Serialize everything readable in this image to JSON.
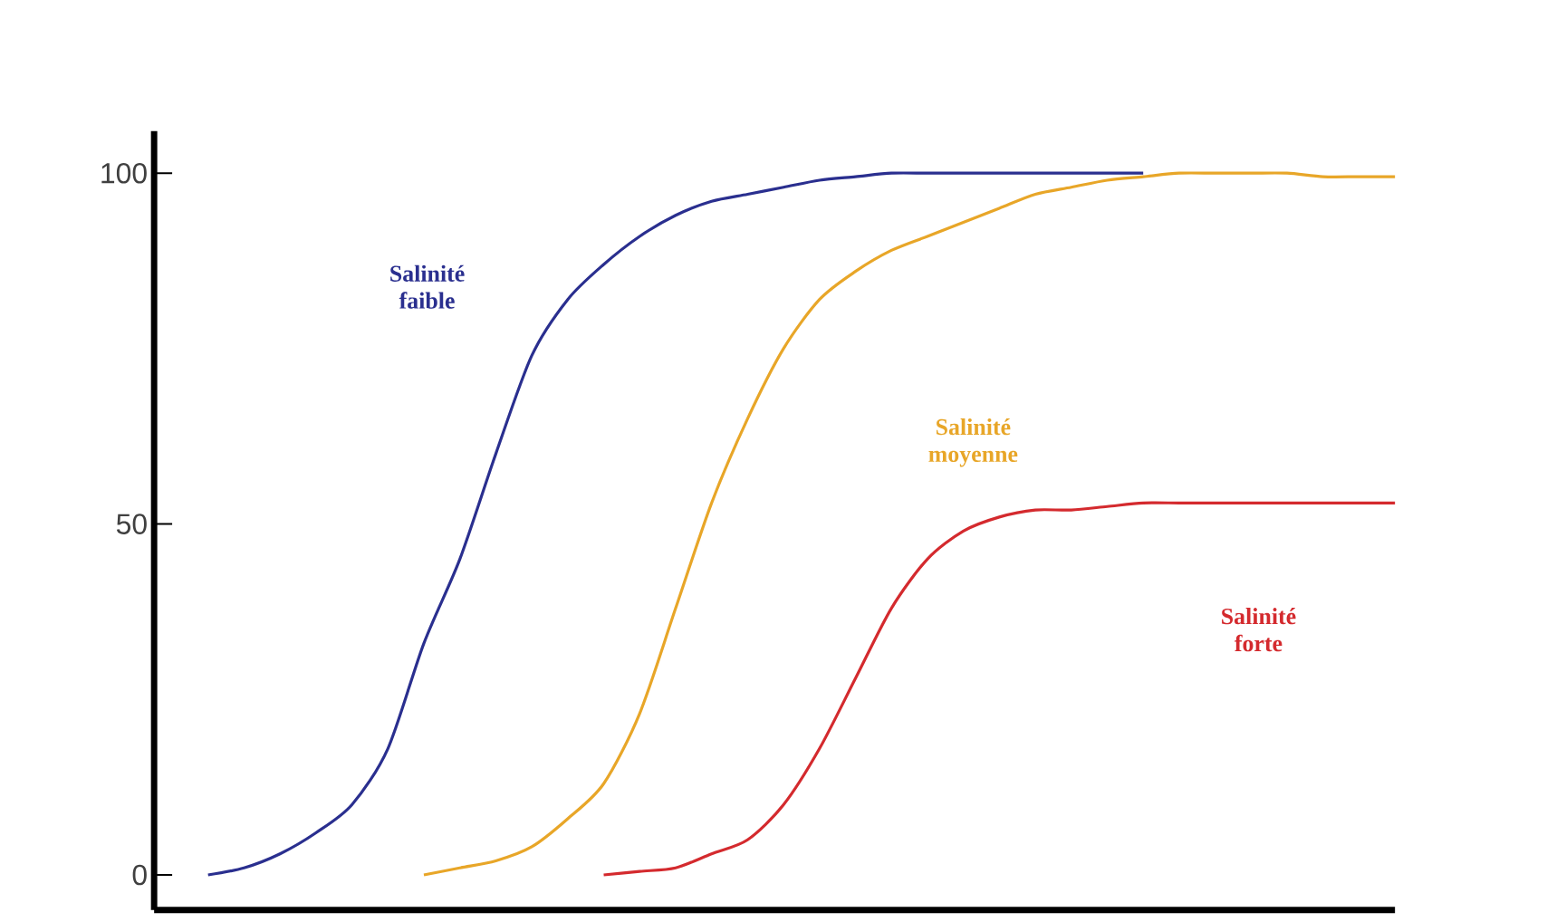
{
  "chart_data": {
    "type": "line",
    "categories": [
      null,
      null,
      null,
      null,
      null,
      null,
      null,
      null,
      null,
      null,
      null,
      null,
      null,
      null,
      null,
      null,
      null,
      null,
      null,
      null,
      null,
      null,
      null,
      null,
      null,
      null,
      null,
      null,
      null,
      null,
      null,
      null,
      null,
      null,
      null
    ],
    "ylim": [
      -5,
      106
    ],
    "yticks": [
      0,
      50,
      100
    ],
    "grid": false,
    "legend": false,
    "marker": "none",
    "line_style": "solid",
    "series": [
      {
        "name": "Salinité faible",
        "color": "#2a2f8f",
        "values": [
          null,
          0,
          1,
          3,
          6,
          10,
          18,
          33,
          45,
          60,
          74,
          82,
          87,
          91,
          94,
          96,
          97,
          98,
          99,
          99.5,
          100,
          100,
          100,
          100,
          100,
          100,
          100,
          100,
          null,
          null,
          null,
          null,
          null,
          null,
          null
        ]
      },
      {
        "name": "Salinité moyenne",
        "color": "#e8a628",
        "values": [
          null,
          null,
          null,
          null,
          null,
          null,
          null,
          0,
          1,
          2,
          4,
          8,
          13,
          23,
          38,
          53,
          65,
          75,
          82,
          86,
          89,
          91,
          93,
          95,
          97,
          98,
          99,
          99.5,
          100,
          100,
          100,
          100,
          99.5,
          99.5,
          99.5
        ]
      },
      {
        "name": "Salinité forte",
        "color": "#d42a2e",
        "values": [
          null,
          null,
          null,
          null,
          null,
          null,
          null,
          null,
          null,
          null,
          null,
          null,
          0,
          0.5,
          1,
          3,
          5,
          10,
          18,
          28,
          38,
          45,
          49,
          51,
          52,
          52,
          52.5,
          53,
          53,
          53,
          53,
          53,
          53,
          53,
          53
        ]
      }
    ]
  }
}
